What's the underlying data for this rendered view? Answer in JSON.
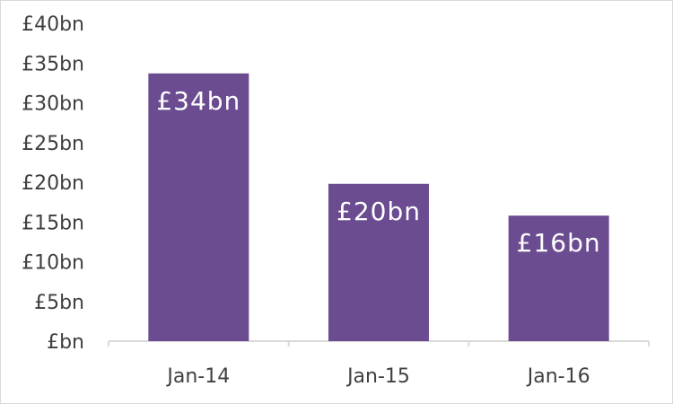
{
  "chart_data": {
    "type": "bar",
    "title": "",
    "xlabel": "",
    "ylabel": "",
    "categories": [
      "Jan-14",
      "Jan-15",
      "Jan-16"
    ],
    "values": [
      33.7,
      19.8,
      15.8
    ],
    "value_unit": "£bn",
    "data_labels": [
      "£34bn",
      "£20bn",
      "£16bn"
    ],
    "ylim": [
      0,
      40
    ],
    "yticks": [
      0,
      5,
      10,
      15,
      20,
      25,
      30,
      35,
      40
    ],
    "ytick_labels": [
      "£bn",
      "£5bn",
      "£10bn",
      "£15bn",
      "£20bn",
      "£25bn",
      "£30bn",
      "£35bn",
      "£40bn"
    ],
    "grid": false,
    "legend": "none",
    "bar_color": "#6b4c91",
    "axis_color": "#d9d9d9"
  }
}
